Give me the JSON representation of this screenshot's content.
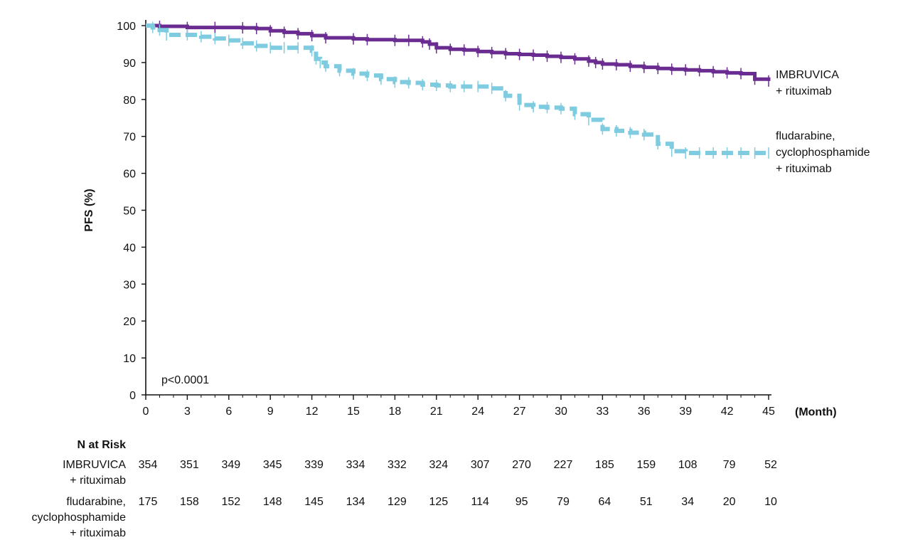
{
  "chart_data": {
    "type": "line",
    "ylabel": "PFS (%)",
    "xlabel": "(Month)",
    "xlim": [
      0,
      45
    ],
    "ylim": [
      0,
      100
    ],
    "xticks": [
      0,
      3,
      6,
      9,
      12,
      15,
      18,
      21,
      24,
      27,
      30,
      33,
      36,
      39,
      42,
      45
    ],
    "yticks": [
      0,
      10,
      20,
      30,
      40,
      50,
      60,
      70,
      80,
      90,
      100
    ],
    "annotation": "p<0.0001",
    "grid": false,
    "series": [
      {
        "name_lines": [
          "IMBRUVICA",
          "+ rituximab"
        ],
        "color": "#6a2c91",
        "style": "solid",
        "x": [
          0,
          1,
          3,
          5,
          7,
          8,
          9,
          10,
          11,
          12,
          13,
          15,
          16,
          18,
          19,
          20,
          20.5,
          21,
          22,
          23,
          24,
          25,
          26,
          27,
          28,
          29,
          30,
          31,
          32,
          32.5,
          33,
          34,
          35,
          36,
          37,
          38,
          39,
          40,
          41,
          42,
          43,
          44,
          45
        ],
        "y": [
          100,
          99.8,
          99.5,
          99.5,
          99.4,
          99.2,
          98.6,
          98.2,
          97.8,
          97.3,
          96.7,
          96.4,
          96.2,
          96.0,
          96.0,
          95.6,
          95.0,
          94.0,
          93.6,
          93.4,
          93.0,
          92.7,
          92.4,
          92.2,
          92.0,
          91.7,
          91.4,
          91.0,
          90.4,
          90.0,
          89.6,
          89.4,
          89.0,
          88.7,
          88.4,
          88.2,
          88.0,
          87.8,
          87.5,
          87.2,
          87.0,
          85.5,
          85.0
        ]
      },
      {
        "name_lines": [
          "fludarabine,",
          "cyclophosphamide",
          "+ rituximab"
        ],
        "color": "#7fcbe0",
        "style": "dashed",
        "x": [
          0,
          0.5,
          1.0,
          1.5,
          3,
          4,
          5,
          6,
          7,
          8,
          9,
          10,
          11,
          12,
          12.3,
          12.6,
          13,
          14,
          15,
          16,
          17,
          18,
          19,
          20,
          21,
          22,
          23,
          24,
          25,
          26,
          27,
          28,
          29,
          30,
          31,
          32,
          33,
          34,
          35,
          36,
          37,
          38,
          39,
          40,
          41,
          42,
          43,
          44,
          45
        ],
        "y": [
          100,
          99.5,
          98.8,
          97.5,
          97.5,
          97.0,
          96.5,
          96.0,
          95.2,
          94.5,
          94.0,
          94.0,
          94.0,
          93.2,
          91.0,
          90.0,
          89.0,
          87.8,
          87.0,
          86.5,
          85.5,
          84.7,
          84.5,
          84.0,
          83.8,
          83.5,
          83.5,
          83.5,
          83.0,
          81.0,
          78.5,
          78.0,
          77.8,
          77.5,
          76.0,
          74.5,
          72.0,
          71.5,
          71.0,
          70.5,
          68.0,
          66.0,
          65.5,
          65.5,
          65.5,
          65.5,
          65.5,
          65.5,
          65.5
        ]
      }
    ],
    "at_risk": {
      "heading": "N at Risk",
      "x": [
        0,
        3,
        6,
        9,
        12,
        15,
        18,
        21,
        24,
        27,
        30,
        33,
        36,
        39,
        42,
        45
      ],
      "rows": [
        {
          "label_lines": [
            "IMBRUVICA",
            "+ rituximab"
          ],
          "values": [
            354,
            351,
            349,
            345,
            339,
            334,
            332,
            324,
            307,
            270,
            227,
            185,
            159,
            108,
            79,
            52
          ]
        },
        {
          "label_lines": [
            "fludarabine,",
            "cyclophosphamide",
            "+ rituximab"
          ],
          "values": [
            175,
            158,
            152,
            148,
            145,
            134,
            129,
            125,
            114,
            95,
            79,
            64,
            51,
            34,
            20,
            10
          ]
        }
      ]
    }
  }
}
